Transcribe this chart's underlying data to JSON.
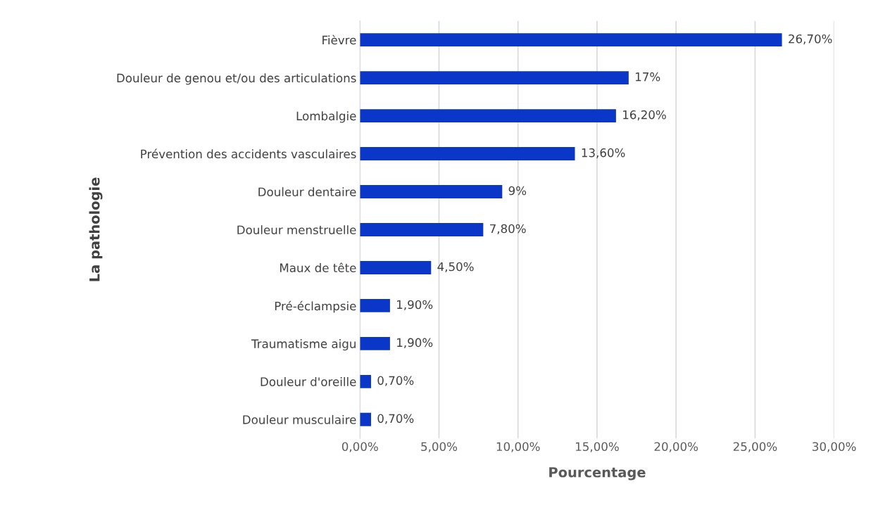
{
  "chart_data": {
    "type": "bar",
    "orientation": "horizontal",
    "xlabel": "Pourcentage",
    "ylabel": "La pathologie",
    "categories": [
      "Fièvre",
      "Douleur de genou et/ou des articulations",
      "Lombalgie",
      "Prévention des accidents vasculaires",
      "Douleur dentaire",
      "Douleur menstruelle",
      "Maux de tête",
      "Pré-éclampsie",
      "Traumatisme aigu",
      "Douleur d'oreille",
      "Douleur musculaire"
    ],
    "values": [
      26.7,
      17,
      16.2,
      13.6,
      9,
      7.8,
      4.5,
      1.9,
      1.9,
      0.7,
      0.7
    ],
    "value_labels": [
      "26,70%",
      "17%",
      "16,20%",
      "13,60%",
      "9%",
      "7,80%",
      "4,50%",
      "1,90%",
      "1,90%",
      "0,70%",
      "0,70%"
    ],
    "color": "#0a37c8",
    "xlim": [
      0,
      30
    ],
    "xticks": [
      {
        "value": 0,
        "label": "0,00%"
      },
      {
        "value": 5,
        "label": "5,00%"
      },
      {
        "value": 10,
        "label": "10,00%"
      },
      {
        "value": 15,
        "label": "15,00%"
      },
      {
        "value": 20,
        "label": "20,00%"
      },
      {
        "value": 25,
        "label": "25,00%"
      },
      {
        "value": 30,
        "label": "30,00%"
      }
    ],
    "grid": "x",
    "legend": false
  }
}
